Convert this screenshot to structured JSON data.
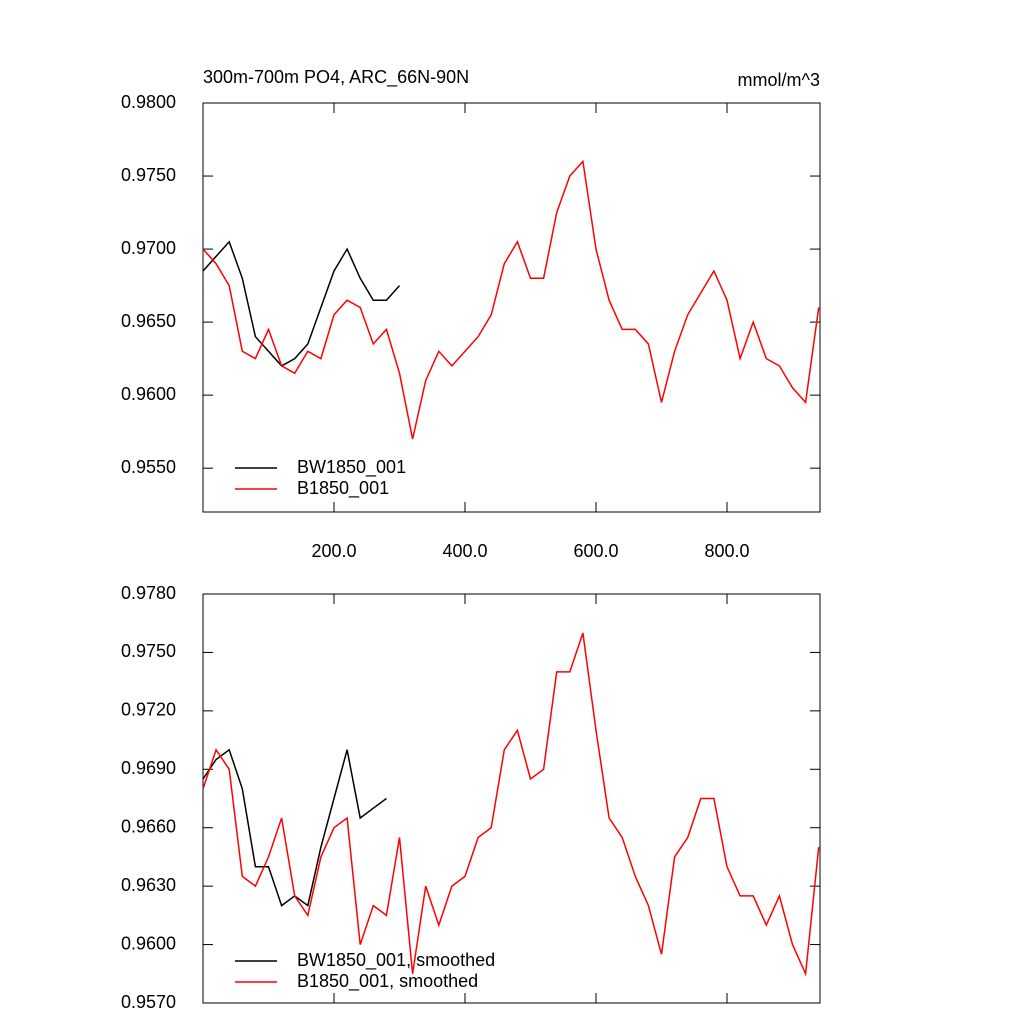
{
  "chart_data": [
    {
      "type": "line",
      "title": "300m-700m PO4, ARC_66N-90N",
      "units_label": "mmol/m^3",
      "xlim": [
        0,
        942
      ],
      "ylim": [
        0.952,
        0.98
      ],
      "xticks": [
        {
          "value": 200,
          "label": "200.0"
        },
        {
          "value": 400,
          "label": "400.0"
        },
        {
          "value": 600,
          "label": "600.0"
        },
        {
          "value": 800,
          "label": "800.0"
        }
      ],
      "yticks": [
        {
          "value": 0.955,
          "label": "0.9550"
        },
        {
          "value": 0.96,
          "label": "0.9600"
        },
        {
          "value": 0.965,
          "label": "0.9650"
        },
        {
          "value": 0.97,
          "label": "0.9700"
        },
        {
          "value": 0.975,
          "label": "0.9750"
        },
        {
          "value": 0.98,
          "label": "0.9800"
        }
      ],
      "series": [
        {
          "name": "BW1850_001",
          "color": "#000000",
          "x": [
            0,
            20,
            40,
            60,
            80,
            100,
            120,
            140,
            160,
            180,
            200,
            220,
            240,
            260,
            280,
            300
          ],
          "values": [
            0.9685,
            0.9695,
            0.9705,
            0.968,
            0.964,
            0.963,
            0.962,
            0.9625,
            0.9635,
            0.966,
            0.9685,
            0.97,
            0.968,
            0.9665,
            0.9665,
            0.9675
          ]
        },
        {
          "name": "B1850_001",
          "color": "#ff0000",
          "x": [
            0,
            20,
            40,
            60,
            80,
            100,
            120,
            140,
            160,
            180,
            200,
            220,
            240,
            260,
            280,
            300,
            320,
            340,
            360,
            380,
            400,
            420,
            440,
            460,
            480,
            500,
            520,
            540,
            560,
            580,
            600,
            620,
            640,
            660,
            680,
            700,
            720,
            740,
            760,
            780,
            800,
            820,
            840,
            860,
            880,
            900,
            920,
            940
          ],
          "values": [
            0.97,
            0.969,
            0.9675,
            0.963,
            0.9625,
            0.9645,
            0.962,
            0.9615,
            0.963,
            0.9625,
            0.9655,
            0.9665,
            0.966,
            0.9635,
            0.9645,
            0.9615,
            0.957,
            0.961,
            0.963,
            0.962,
            0.963,
            0.964,
            0.9655,
            0.969,
            0.9705,
            0.968,
            0.968,
            0.9725,
            0.975,
            0.976,
            0.97,
            0.9665,
            0.9645,
            0.9645,
            0.9635,
            0.9595,
            0.963,
            0.9655,
            0.967,
            0.9685,
            0.9665,
            0.9625,
            0.965,
            0.9625,
            0.962,
            0.9605,
            0.9595,
            0.966
          ]
        }
      ]
    },
    {
      "type": "line",
      "xtick_labels": false,
      "xlim": [
        0,
        942
      ],
      "ylim": [
        0.957,
        0.978
      ],
      "xticks": [
        200,
        400,
        600,
        800
      ],
      "yticks": [
        {
          "value": 0.957,
          "label": "0.9570"
        },
        {
          "value": 0.96,
          "label": "0.9600"
        },
        {
          "value": 0.963,
          "label": "0.9630"
        },
        {
          "value": 0.966,
          "label": "0.9660"
        },
        {
          "value": 0.969,
          "label": "0.9690"
        },
        {
          "value": 0.972,
          "label": "0.9720"
        },
        {
          "value": 0.975,
          "label": "0.9750"
        },
        {
          "value": 0.978,
          "label": "0.9780"
        }
      ],
      "series": [
        {
          "name": "BW1850_001, smoothed",
          "color": "#000000",
          "x": [
            0,
            20,
            40,
            60,
            80,
            100,
            120,
            140,
            160,
            180,
            200,
            220,
            240,
            260,
            280
          ],
          "values": [
            0.9685,
            0.9695,
            0.97,
            0.968,
            0.964,
            0.964,
            0.962,
            0.9625,
            0.962,
            0.965,
            0.9675,
            0.97,
            0.9665,
            0.967,
            0.9675
          ]
        },
        {
          "name": "B1850_001, smoothed",
          "color": "#ff0000",
          "x": [
            0,
            20,
            40,
            60,
            80,
            100,
            120,
            140,
            160,
            180,
            200,
            220,
            240,
            260,
            280,
            300,
            320,
            340,
            360,
            380,
            400,
            420,
            440,
            460,
            480,
            500,
            520,
            540,
            560,
            580,
            600,
            620,
            640,
            660,
            680,
            700,
            720,
            740,
            760,
            780,
            800,
            820,
            840,
            860,
            880,
            900,
            920,
            940
          ],
          "values": [
            0.968,
            0.97,
            0.969,
            0.9635,
            0.963,
            0.9645,
            0.9665,
            0.9625,
            0.9615,
            0.9645,
            0.966,
            0.9665,
            0.96,
            0.962,
            0.9615,
            0.9655,
            0.9585,
            0.963,
            0.961,
            0.963,
            0.9635,
            0.9655,
            0.966,
            0.97,
            0.971,
            0.9685,
            0.969,
            0.974,
            0.974,
            0.976,
            0.971,
            0.9665,
            0.9655,
            0.9635,
            0.962,
            0.9595,
            0.9645,
            0.9655,
            0.9675,
            0.9675,
            0.964,
            0.9625,
            0.9625,
            0.961,
            0.9625,
            0.96,
            0.9585,
            0.965
          ]
        }
      ]
    }
  ]
}
